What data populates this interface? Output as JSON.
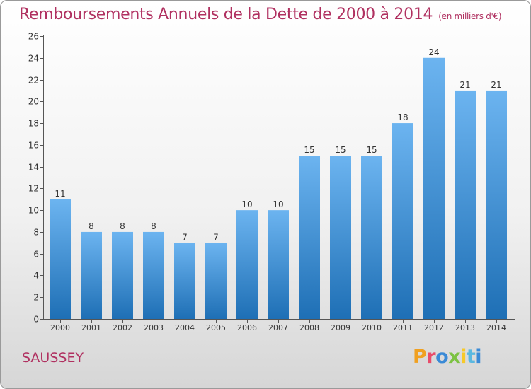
{
  "header": {
    "title": "Remboursements Annuels de la Dette de 2000 à 2014",
    "unit": "(en milliers d'€)"
  },
  "footer": {
    "commune": "SAUSSEY",
    "logo": [
      "P",
      "r",
      "o",
      "x",
      "i",
      "t",
      "i"
    ]
  },
  "colors": {
    "bar_light": "#6cb4f0",
    "bar_dark": "#1e6fb5",
    "title": "#b03060"
  },
  "chart_data": {
    "type": "bar",
    "title": "Remboursements Annuels de la Dette de 2000 à 2014",
    "categories": [
      "2000",
      "2001",
      "2002",
      "2003",
      "2004",
      "2005",
      "2006",
      "2007",
      "2008",
      "2009",
      "2010",
      "2011",
      "2012",
      "2013",
      "2014"
    ],
    "values": [
      11,
      8,
      8,
      8,
      7,
      7,
      10,
      10,
      15,
      15,
      15,
      18,
      24,
      21,
      21
    ],
    "ylim": [
      0,
      26
    ],
    "yticks": [
      0,
      2,
      4,
      6,
      8,
      10,
      12,
      14,
      16,
      18,
      20,
      22,
      24,
      26
    ],
    "grid": false,
    "data_labels": true
  }
}
